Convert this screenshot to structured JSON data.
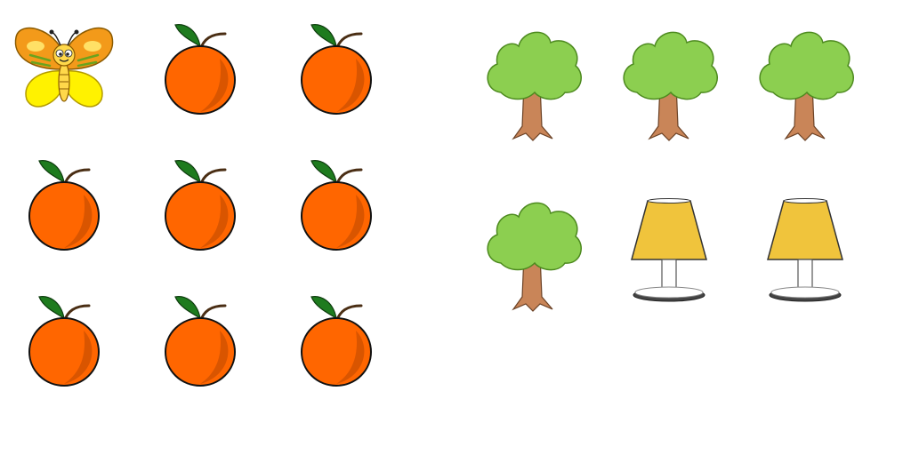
{
  "scene": {
    "left_group": {
      "items": [
        "butterfly",
        "orange",
        "orange",
        "orange",
        "orange",
        "orange",
        "orange",
        "orange",
        "orange"
      ]
    },
    "right_group": {
      "items": [
        "tree",
        "tree",
        "tree",
        "tree",
        "lamp",
        "lamp"
      ]
    }
  },
  "icons": {
    "butterfly": "butterfly-icon",
    "orange": "orange-icon",
    "tree": "tree-icon",
    "lamp": "lamp-icon"
  },
  "colors": {
    "orange_fill": "#FF6600",
    "orange_shade": "#D95500",
    "leaf_green": "#1E7B1E",
    "tree_foliage": "#8CCF50",
    "tree_trunk": "#C98558",
    "lamp_shade": "#F0C43C",
    "butterfly_wing_outer": "#F39A1A",
    "butterfly_wing_inner": "#FFF200"
  }
}
